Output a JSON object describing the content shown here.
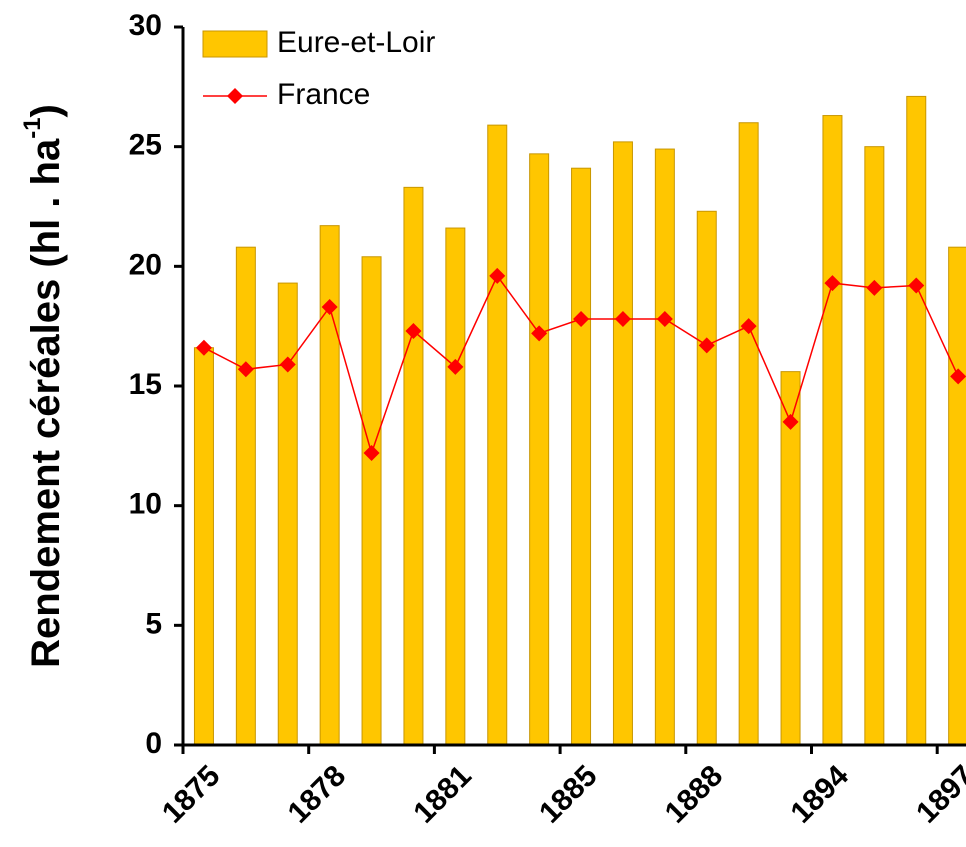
{
  "chart_data": {
    "type": "bar_line",
    "y_label": {
      "text": "Rendement céréales (hl . ha",
      "sup": "-1",
      "end": ")"
    },
    "categories": [
      "1875",
      null,
      null,
      "1878",
      null,
      null,
      "1881",
      null,
      null,
      "1885",
      null,
      null,
      "1888",
      null,
      null,
      "1894",
      null,
      null,
      "1897"
    ],
    "series": [
      {
        "name": "Eure-et-Loir",
        "type": "bar",
        "color": "#FFC600",
        "values": [
          16.6,
          20.8,
          19.3,
          21.7,
          20.4,
          23.3,
          21.6,
          25.9,
          24.7,
          24.1,
          25.2,
          24.9,
          22.3,
          26.0,
          15.6,
          26.3,
          25.0,
          27.1,
          20.8
        ]
      },
      {
        "name": "France",
        "type": "line",
        "color": "#FF0000",
        "values": [
          16.6,
          15.7,
          15.9,
          18.3,
          12.2,
          17.3,
          15.8,
          19.6,
          17.2,
          17.8,
          17.8,
          17.8,
          16.7,
          17.5,
          13.5,
          19.3,
          19.1,
          19.2,
          15.4
        ]
      }
    ],
    "ylim": [
      0,
      30
    ],
    "yticks": [
      0,
      5,
      10,
      15,
      20,
      25,
      30
    ],
    "grid": false,
    "legend": "top-left"
  }
}
